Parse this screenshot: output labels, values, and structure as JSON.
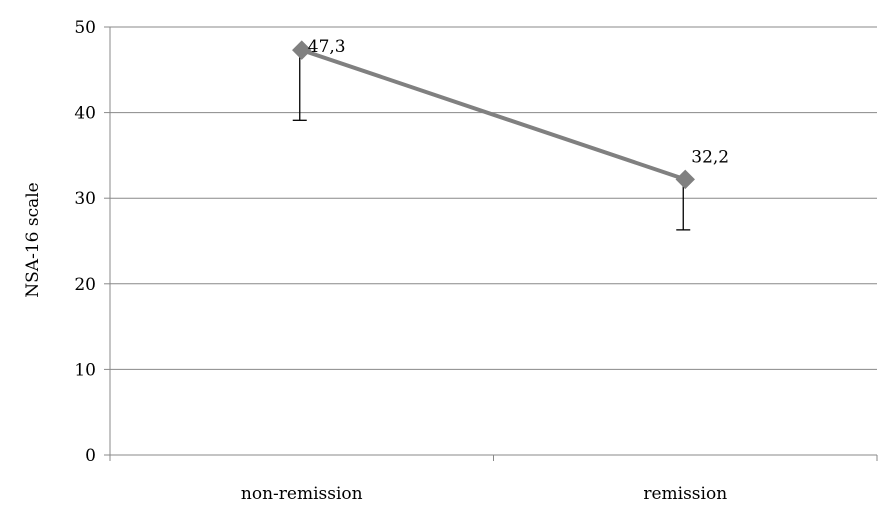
{
  "chart_data": {
    "type": "line",
    "categories": [
      "non-remission",
      "remission"
    ],
    "series": [
      {
        "values": [
          47.3,
          32.2
        ],
        "value_labels": [
          "47,3",
          "32,2"
        ],
        "error_lower": [
          39.1,
          26.3
        ],
        "color": "#808080",
        "marker": "diamond"
      }
    ],
    "title": "",
    "xlabel": "",
    "ylabel": "NSA-16 scale",
    "ylim": [
      0,
      50
    ],
    "yticks": [
      0,
      10,
      20,
      30,
      40,
      50
    ],
    "grid": true,
    "legend": "none",
    "gridline_color": "#888888",
    "error_bar_color": "#000000"
  }
}
